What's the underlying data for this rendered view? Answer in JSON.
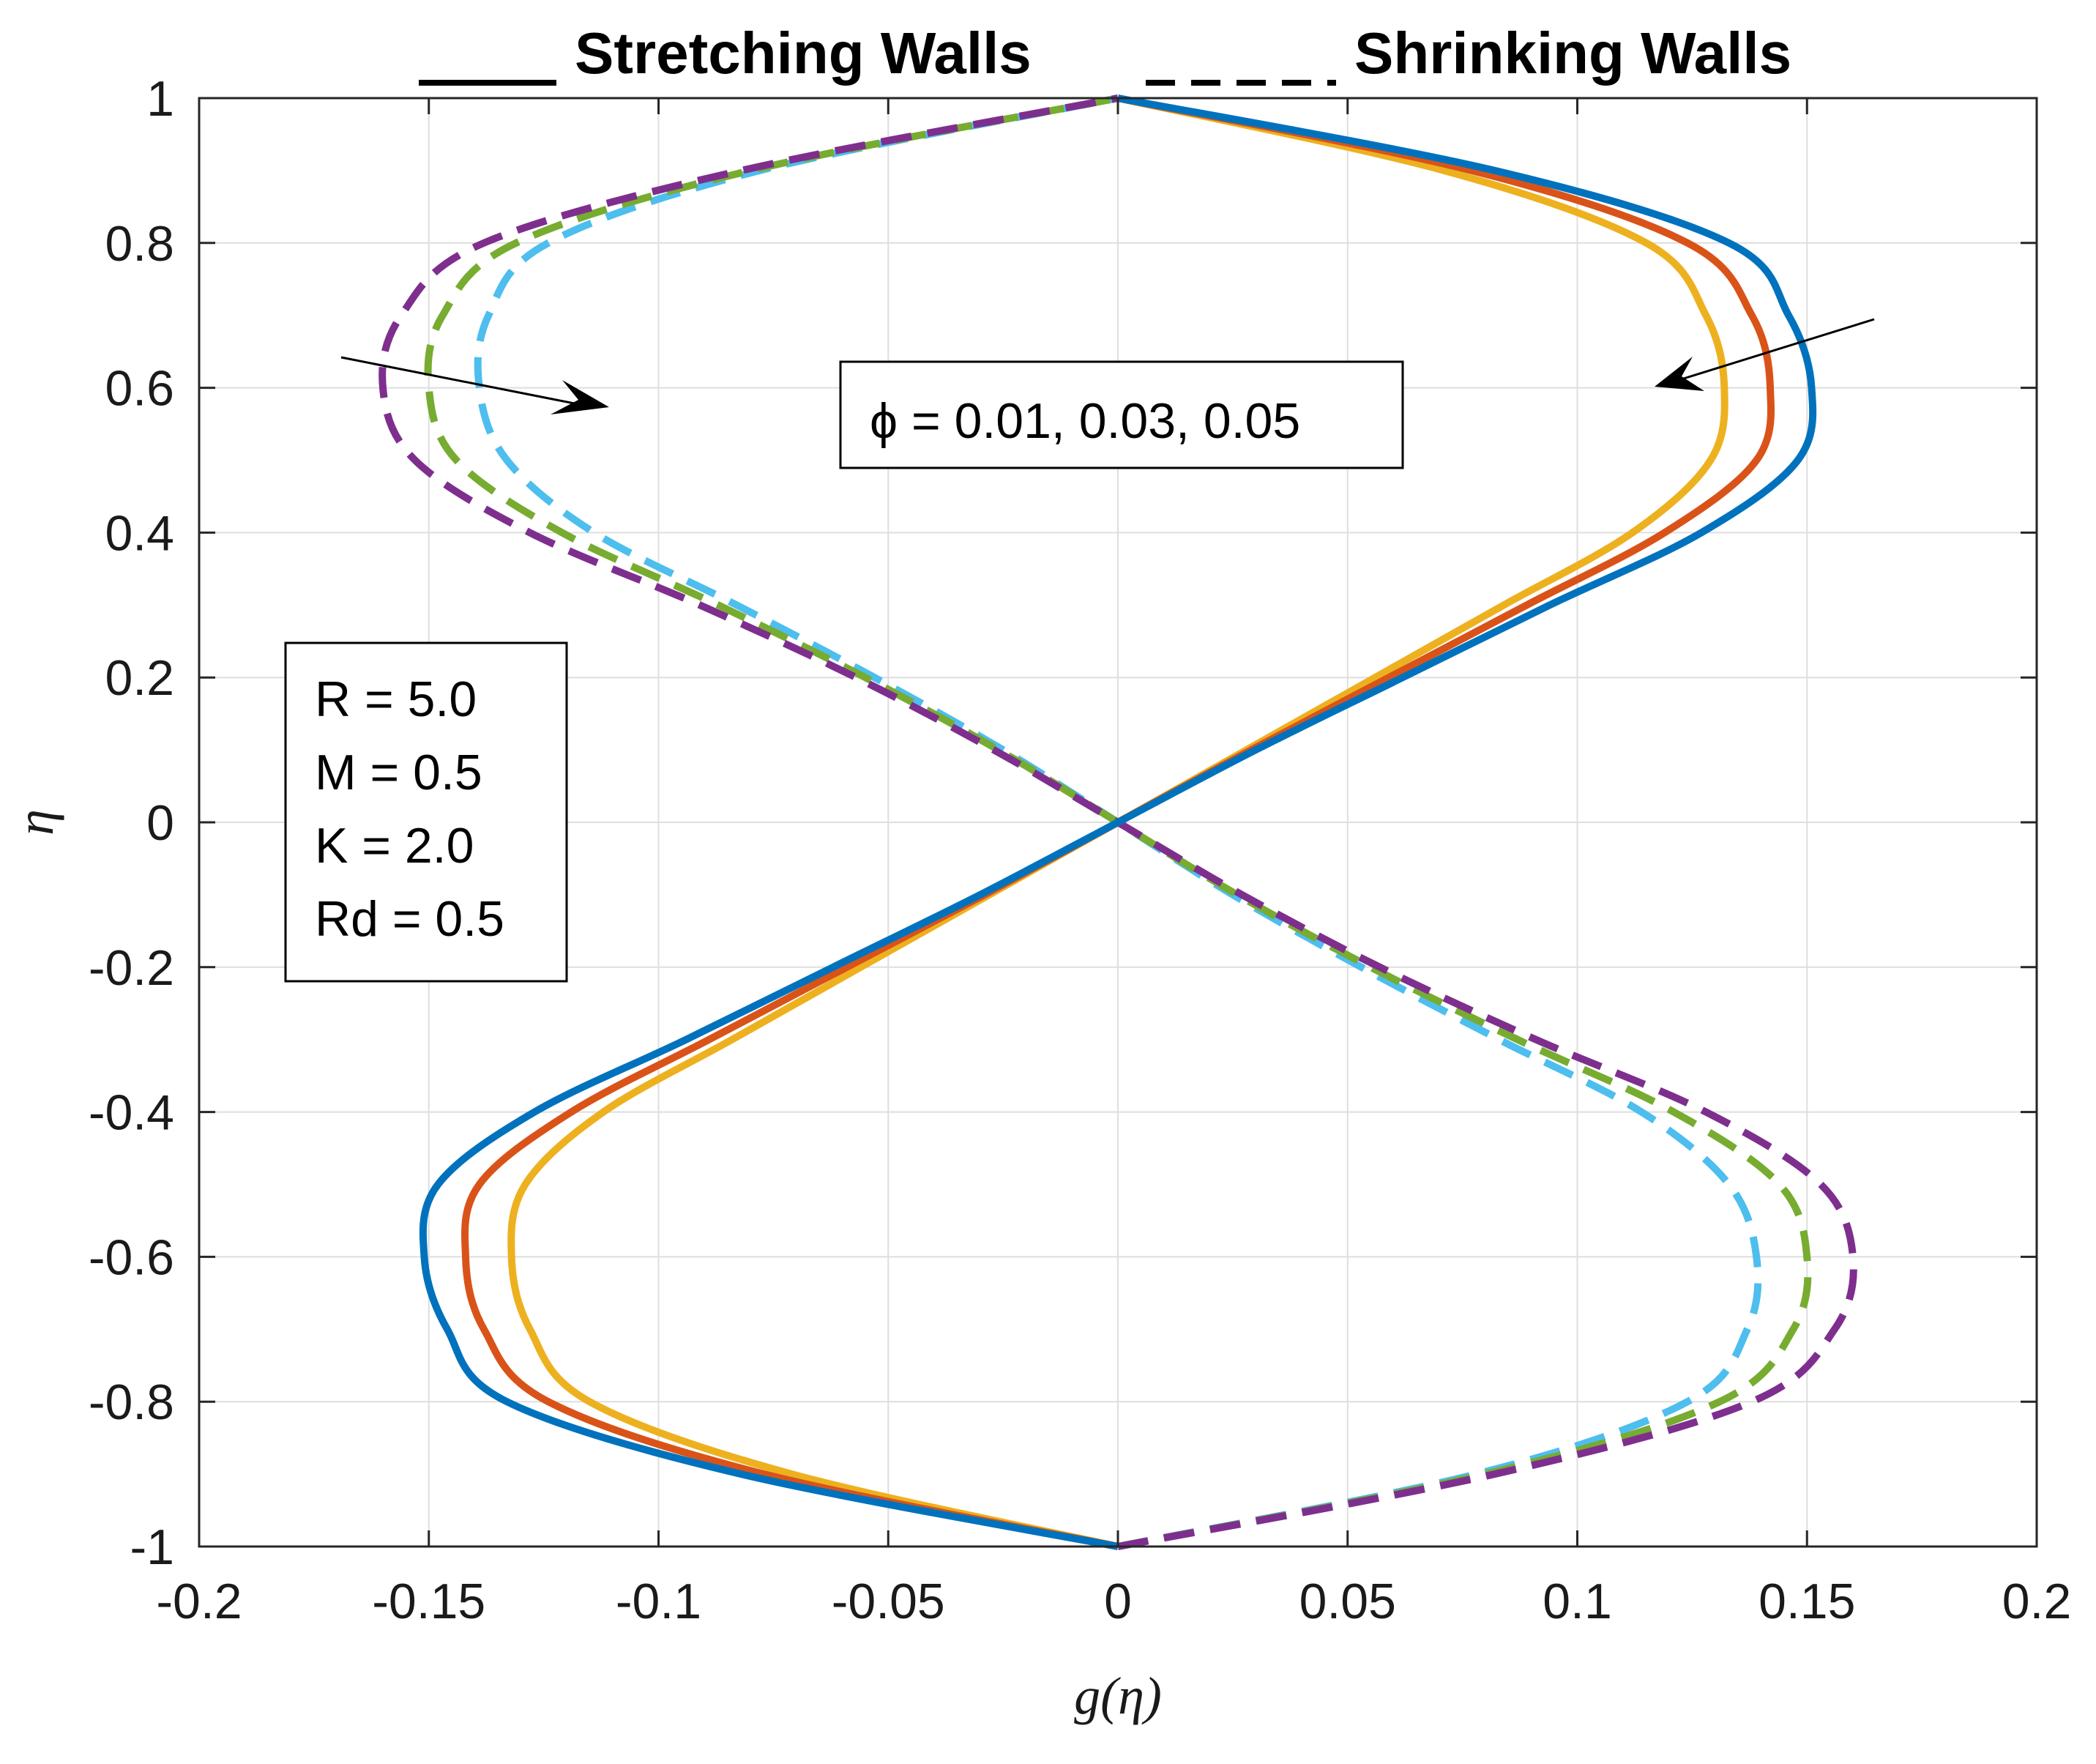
{
  "chart_data": {
    "type": "line",
    "title_stretching": "Stretching Walls",
    "title_shrinking": "Shrinking Walls",
    "xlabel": "g(η)",
    "ylabel": "η",
    "xlim": [
      -0.2,
      0.2
    ],
    "ylim": [
      -1,
      1
    ],
    "xticks": [
      -0.2,
      -0.15,
      -0.1,
      -0.05,
      0,
      0.05,
      0.1,
      0.15,
      0.2
    ],
    "yticks": [
      -1,
      -0.8,
      -0.6,
      -0.4,
      -0.2,
      0,
      0.2,
      0.4,
      0.6,
      0.8,
      1
    ],
    "xtick_labels": [
      "-0.2",
      "-0.15",
      "-0.1",
      "-0.05",
      "0",
      "0.05",
      "0.1",
      "0.15",
      "0.2"
    ],
    "ytick_labels": [
      "-1",
      "-0.8",
      "-0.6",
      "-0.4",
      "-0.2",
      "0",
      "0.2",
      "0.4",
      "0.6",
      "0.8",
      "1"
    ],
    "grid": true,
    "eta": [
      -1,
      -0.9,
      -0.8,
      -0.7,
      -0.6,
      -0.5,
      -0.4,
      -0.3,
      -0.2,
      -0.1,
      0,
      0.1,
      0.2,
      0.3,
      0.4,
      0.5,
      0.6,
      0.7,
      0.8,
      0.9,
      1
    ],
    "series": [
      {
        "name": "Stretching, φ = 0.01",
        "style": "solid",
        "color": "#0072BD",
        "values": [
          0,
          -0.082,
          -0.133,
          -0.146,
          -0.151,
          -0.148,
          -0.127,
          -0.094,
          -0.062,
          -0.03,
          0,
          0.03,
          0.062,
          0.094,
          0.127,
          0.148,
          0.151,
          0.146,
          0.133,
          0.082,
          0
        ]
      },
      {
        "name": "Stretching, φ = 0.03",
        "style": "solid",
        "color": "#D95319",
        "values": [
          0,
          -0.077,
          -0.124,
          -0.138,
          -0.142,
          -0.139,
          -0.119,
          -0.089,
          -0.059,
          -0.029,
          0,
          0.029,
          0.059,
          0.089,
          0.119,
          0.139,
          0.142,
          0.138,
          0.124,
          0.077,
          0
        ]
      },
      {
        "name": "Stretching, φ = 0.05",
        "style": "solid",
        "color": "#EDB120",
        "values": [
          0,
          -0.071,
          -0.115,
          -0.128,
          -0.132,
          -0.129,
          -0.112,
          -0.084,
          -0.056,
          -0.028,
          0,
          0.028,
          0.056,
          0.084,
          0.112,
          0.129,
          0.132,
          0.128,
          0.115,
          0.071,
          0
        ]
      },
      {
        "name": "Shrinking, φ = 0.01",
        "style": "dashed",
        "color": "#7E2F8E",
        "values": [
          0,
          0.082,
          0.138,
          0.156,
          0.16,
          0.153,
          0.128,
          0.091,
          0.057,
          0.027,
          0,
          -0.027,
          -0.057,
          -0.091,
          -0.128,
          -0.153,
          -0.16,
          -0.156,
          -0.138,
          -0.082,
          0
        ]
      },
      {
        "name": "Shrinking, φ = 0.03",
        "style": "dashed",
        "color": "#77AC30",
        "values": [
          0,
          0.08,
          0.131,
          0.147,
          0.15,
          0.144,
          0.121,
          0.087,
          0.055,
          0.026,
          0,
          -0.026,
          -0.055,
          -0.087,
          -0.121,
          -0.144,
          -0.15,
          -0.147,
          -0.131,
          -0.08,
          0
        ]
      },
      {
        "name": "Shrinking, φ = 0.05",
        "style": "dashed",
        "color": "#4DBEEE",
        "values": [
          0,
          0.078,
          0.124,
          0.137,
          0.139,
          0.133,
          0.114,
          0.083,
          0.053,
          0.025,
          0,
          -0.025,
          -0.053,
          -0.083,
          -0.114,
          -0.133,
          -0.139,
          -0.137,
          -0.124,
          -0.078,
          0
        ]
      }
    ],
    "annotations": {
      "phi_label": "ϕ = 0.01, 0.03, 0.05",
      "params": [
        "R = 5.0",
        "M = 0.5",
        "K = 2.0",
        "Rd = 0.5"
      ]
    }
  }
}
